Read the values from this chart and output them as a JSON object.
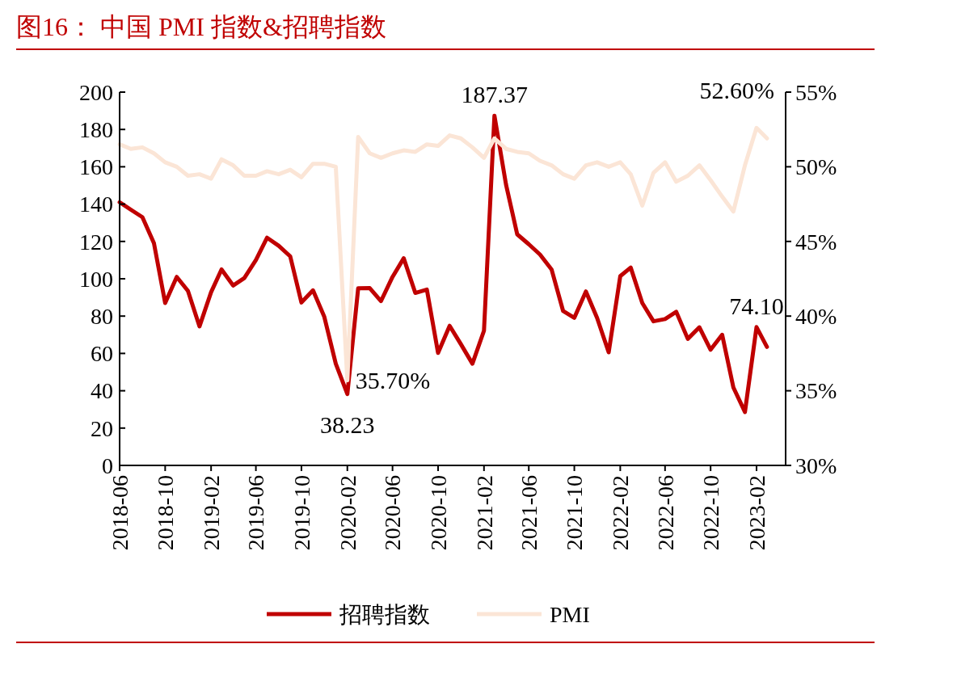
{
  "chart_data": {
    "type": "line",
    "title": "图16： 中国 PMI 指数&招聘指数",
    "x": [
      "2018-06",
      "2018-07",
      "2018-08",
      "2018-09",
      "2018-10",
      "2018-11",
      "2018-12",
      "2019-01",
      "2019-02",
      "2019-03",
      "2019-04",
      "2019-05",
      "2019-06",
      "2019-07",
      "2019-08",
      "2019-09",
      "2019-10",
      "2019-11",
      "2019-12",
      "2020-01",
      "2020-02",
      "2020-03",
      "2020-04",
      "2020-05",
      "2020-06",
      "2020-07",
      "2020-08",
      "2020-09",
      "2020-10",
      "2020-11",
      "2020-12",
      "2021-01",
      "2021-02",
      "2021-03",
      "2021-04",
      "2021-05",
      "2021-06",
      "2021-07",
      "2021-08",
      "2021-09",
      "2021-10",
      "2021-11",
      "2021-12",
      "2022-01",
      "2022-02",
      "2022-03",
      "2022-04",
      "2022-05",
      "2022-06",
      "2022-07",
      "2022-08",
      "2022-09",
      "2022-10",
      "2022-11",
      "2022-12",
      "2023-01",
      "2023-02",
      "2023-03"
    ],
    "xlim": [
      "2018-06",
      "2023-04-20"
    ],
    "xticks": [
      {
        "value": "2018-06",
        "label": "2018-06"
      },
      {
        "value": "2018-10",
        "label": "2018-10"
      },
      {
        "value": "2019-02",
        "label": "2019-02"
      },
      {
        "value": "2019-06",
        "label": "2019-06"
      },
      {
        "value": "2019-10",
        "label": "2019-10"
      },
      {
        "value": "2020-02",
        "label": "2020-02"
      },
      {
        "value": "2020-06",
        "label": "2020-06"
      },
      {
        "value": "2020-10",
        "label": "2020-10"
      },
      {
        "value": "2021-02",
        "label": "2021-02"
      },
      {
        "value": "2021-06",
        "label": "2021-06"
      },
      {
        "value": "2021-10",
        "label": "2021-10"
      },
      {
        "value": "2022-02",
        "label": "2022-02"
      },
      {
        "value": "2022-06",
        "label": "2022-06"
      },
      {
        "value": "2022-10",
        "label": "2022-10"
      },
      {
        "value": "2023-02",
        "label": "2023-02"
      }
    ],
    "ylim": [
      0,
      200
    ],
    "yticks": [
      0,
      20,
      40,
      60,
      80,
      100,
      120,
      140,
      160,
      180,
      200
    ],
    "y2lim": [
      30,
      55
    ],
    "y2ticks": [
      {
        "value": 30,
        "label": "30%"
      },
      {
        "value": 35,
        "label": "35%"
      },
      {
        "value": 40,
        "label": "40%"
      },
      {
        "value": 45,
        "label": "45%"
      },
      {
        "value": 50,
        "label": "50%"
      },
      {
        "value": 55,
        "label": "55%"
      }
    ],
    "series": [
      {
        "name": "招聘指数",
        "color": "#c00000",
        "values": [
          141,
          137,
          133,
          119,
          87,
          101,
          93.5,
          74.5,
          92.8,
          105,
          96.4,
          100.4,
          110,
          122,
          117.7,
          112,
          87.3,
          93.8,
          79.8,
          54.5,
          38.23,
          94.9,
          95,
          88,
          101,
          111,
          92.4,
          94.2,
          60.3,
          74.8,
          65,
          54.5,
          72.2,
          187.37,
          150.5,
          123.8,
          118.5,
          113,
          105,
          82.7,
          79.1,
          93.2,
          79,
          60.6,
          101.4,
          106,
          87,
          77.2,
          78.4,
          82.3,
          67.8,
          74,
          62,
          70,
          41.8,
          28.6,
          74.1,
          63.5
        ],
        "value_labels": [
          null,
          null,
          null,
          null,
          null,
          null,
          null,
          null,
          null,
          null,
          null,
          null,
          null,
          null,
          null,
          null,
          null,
          null,
          null,
          null,
          "38.23",
          null,
          null,
          null,
          null,
          null,
          null,
          null,
          null,
          null,
          null,
          null,
          null,
          "187.37",
          null,
          null,
          null,
          null,
          null,
          null,
          null,
          null,
          null,
          null,
          null,
          null,
          null,
          null,
          null,
          null,
          null,
          null,
          null,
          null,
          null,
          null,
          "74.10",
          null
        ]
      },
      {
        "name": "PMI",
        "color": "#fbe5d6",
        "axis": "y2",
        "values": [
          51.5,
          51.2,
          51.3,
          50.9,
          50.3,
          50.0,
          49.4,
          49.5,
          49.2,
          50.5,
          50.1,
          49.4,
          49.4,
          49.7,
          49.5,
          49.8,
          49.3,
          50.2,
          50.2,
          50.0,
          35.7,
          52.0,
          50.9,
          50.6,
          50.9,
          51.1,
          51.0,
          51.5,
          51.4,
          52.1,
          51.9,
          51.3,
          50.6,
          51.9,
          51.2,
          51.0,
          50.9,
          50.4,
          50.1,
          49.5,
          49.2,
          50.1,
          50.3,
          50.0,
          50.3,
          49.5,
          47.4,
          49.6,
          50.3,
          49.0,
          49.4,
          50.1,
          49.1,
          48.0,
          47.0,
          50.1,
          52.6,
          51.9
        ],
        "value_labels": [
          null,
          null,
          null,
          null,
          null,
          null,
          null,
          null,
          null,
          null,
          null,
          null,
          null,
          null,
          null,
          null,
          null,
          null,
          null,
          null,
          "35.70%",
          null,
          null,
          null,
          null,
          null,
          null,
          null,
          null,
          null,
          null,
          null,
          null,
          null,
          null,
          null,
          null,
          null,
          null,
          null,
          null,
          null,
          null,
          null,
          null,
          null,
          null,
          null,
          null,
          null,
          null,
          null,
          null,
          null,
          null,
          null,
          "52.60%",
          null
        ]
      }
    ],
    "legend": "bottom",
    "grid": false,
    "line_style": "solid"
  }
}
